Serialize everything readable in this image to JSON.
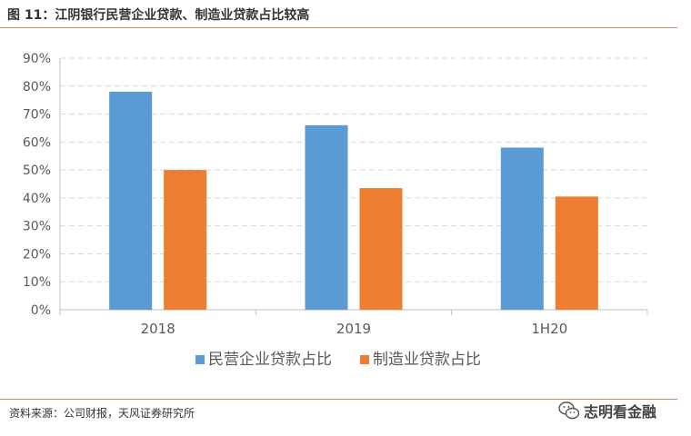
{
  "figure": {
    "title": "图 11：江阴银行民营企业贷款、制造业贷款占比较高",
    "source": "资料来源：公司财报，天风证券研究所",
    "watermark": "志明看金融",
    "watermark_icon": "wechat-icon"
  },
  "chart_data": {
    "type": "bar",
    "categories": [
      "2018",
      "2019",
      "1H20"
    ],
    "series": [
      {
        "name": "民营企业贷款占比",
        "values": [
          78,
          66,
          58
        ],
        "color": "#5B9BD5"
      },
      {
        "name": "制造业贷款占比",
        "values": [
          50,
          43.5,
          40.5
        ],
        "color": "#ED7D31"
      }
    ],
    "ylim": [
      0,
      90
    ],
    "yticks": [
      "0%",
      "10%",
      "20%",
      "30%",
      "40%",
      "50%",
      "60%",
      "70%",
      "80%",
      "90%"
    ],
    "grid": true,
    "legend": "bottom-center",
    "xlabel": "",
    "ylabel": ""
  }
}
